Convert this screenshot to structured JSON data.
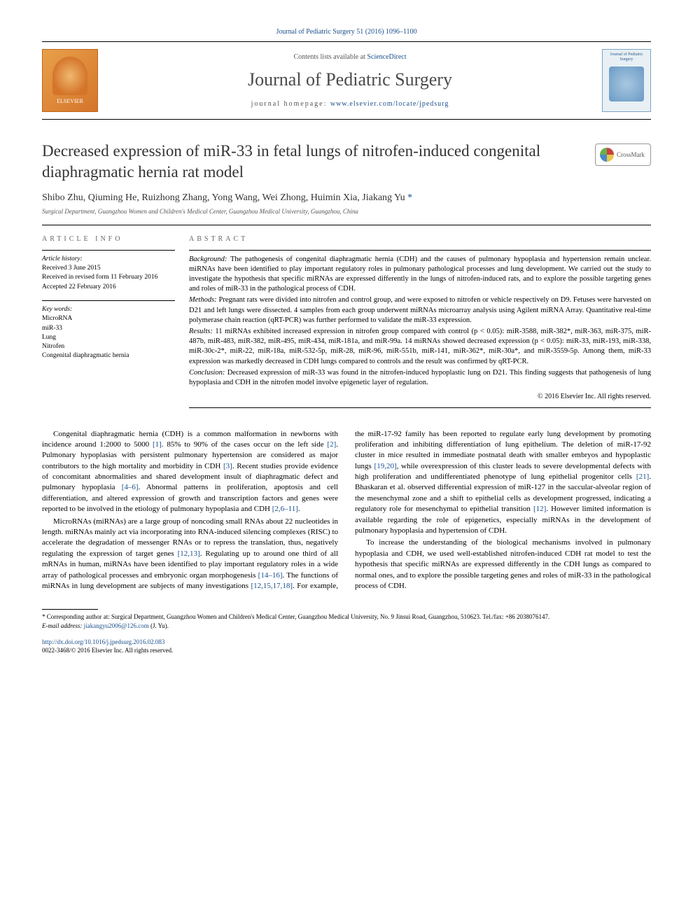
{
  "top_citation": {
    "prefix": "Journal of Pediatric Surgery",
    "rest": " 51 (2016) 1096–1100"
  },
  "header": {
    "contents_prefix": "Contents lists available at ",
    "contents_link": "ScienceDirect",
    "journal_name": "Journal of Pediatric Surgery",
    "homepage_prefix": "journal homepage: ",
    "homepage_url": "www.elsevier.com/locate/jpedsurg",
    "elsevier_text": "ELSEVIER",
    "cover_title": "Journal of Pediatric Surgery"
  },
  "article": {
    "title": "Decreased expression of miR-33 in fetal lungs of nitrofen-induced congenital diaphragmatic hernia rat model",
    "crossmark": "CrossMark",
    "authors": "Shibo Zhu, Qiuming He, Ruizhong Zhang, Yong Wang, Wei Zhong, Huimin Xia, Jiakang Yu ",
    "corresponding_mark": "*",
    "affiliation": "Surgical Department, Guangzhou Women and Children's Medical Center, Guangzhou Medical University, Guangzhou, China"
  },
  "article_info": {
    "label": "ARTICLE INFO",
    "history_label": "Article history:",
    "received": "Received 3 June 2015",
    "revised": "Received in revised form 11 February 2016",
    "accepted": "Accepted 22 February 2016",
    "keywords_label": "Key words:",
    "keywords": [
      "MicroRNA",
      "miR-33",
      "Lung",
      "Nitrofen",
      "Congenital diaphragmatic hernia"
    ]
  },
  "abstract": {
    "label": "ABSTRACT",
    "background_label": "Background:",
    "background": " The pathogenesis of congenital diaphragmatic hernia (CDH) and the causes of pulmonary hypoplasia and hypertension remain unclear. miRNAs have been identified to play important regulatory roles in pulmonary pathological processes and lung development. We carried out the study to investigate the hypothesis that specific miRNAs are expressed differently in the lungs of nitrofen-induced rats, and to explore the possible targeting genes and roles of miR-33 in the pathological process of CDH.",
    "methods_label": "Methods:",
    "methods": " Pregnant rats were divided into nitrofen and control group, and were exposed to nitrofen or vehicle respectively on D9. Fetuses were harvested on D21 and left lungs were dissected. 4 samples from each group underwent miRNAs microarray analysis using Agilent miRNA Array. Quantitative real-time polymerase chain reaction (qRT-PCR) was further performed to validate the miR-33 expression.",
    "results_label": "Results:",
    "results": " 11 miRNAs exhibited increased expression in nitrofen group compared with control (p < 0.05): miR-3588, miR-382*, miR-363, miR-375, miR-487b, miR-483, miR-382, miR-495, miR-434, miR-181a, and miR-99a. 14 miRNAs showed decreased expression (p < 0.05): miR-33, miR-193, miR-338, miR-30c-2*, miR-22, miR-18a, miR-532-5p, miR-28, miR-96, miR-551b, miR-141, miR-362*, miR-30a*, and miR-3559-5p. Among them, miR-33 expression was markedly decreased in CDH lungs compared to controls and the result was confirmed by qRT-PCR.",
    "conclusion_label": "Conclusion:",
    "conclusion": " Decreased expression of miR-33 was found in the nitrofen-induced hypoplastic lung on D21. This finding suggests that pathogenesis of lung hypoplasia and CDH in the nitrofen model involve epigenetic layer of regulation.",
    "copyright": "© 2016 Elsevier Inc. All rights reserved."
  },
  "body": {
    "p1a": "Congenital diaphragmatic hernia (CDH) is a common malformation in newborns with incidence around 1:2000 to 5000 ",
    "r1": "[1]",
    "p1b": ". 85% to 90% of the cases occur on the left side ",
    "r2": "[2]",
    "p1c": ". Pulmonary hypoplasias with persistent pulmonary hypertension are considered as major contributors to the high mortality and morbidity in CDH ",
    "r3": "[3]",
    "p1d": ". Recent studies provide evidence of concomitant abnormalities and shared development insult of diaphragmatic defect and pulmonary hypoplasia ",
    "r4": "[4–6]",
    "p1e": ". Abnormal patterns in proliferation, apoptosis and cell differentiation, and altered expression of growth and transcription factors and genes were reported to be involved in the etiology of pulmonary hypoplasia and CDH ",
    "r5": "[2,6–11]",
    "p1f": ".",
    "p2a": "MicroRNAs (miRNAs) are a large group of noncoding small RNAs about 22 nucleotides in length. miRNAs mainly act via incorporating into RNA-induced silencing complexes (RISC) to accelerate the degradation of messenger RNAs or to repress the translation, thus, negatively regulating the expression of target genes ",
    "r6": "[12,13]",
    "p2b": ". Regulating up to around one third of all mRNAs in human, miRNAs have been identified to play important regulatory roles in a wide array of pathological processes and embryonic organ morphogenesis ",
    "r7": "[14–16]",
    "p2c": ". The functions of miRNAs in lung development are subjects of many investigations ",
    "r8": "[12,15,17,18]",
    "p2d": ". For example, the miR-17-92 family has been reported to regulate early lung development by promoting proliferation and inhibiting differentiation of lung epithelium. The deletion of miR-17-92 cluster in mice resulted in immediate postnatal death with smaller embryos and hypoplastic lungs ",
    "r9": "[19,20]",
    "p2e": ", while overexpression of this cluster leads to severe developmental defects with high proliferation and undifferentiated phenotype of lung epithelial progenitor cells ",
    "r10": "[21]",
    "p2f": ". Bhaskaran et al. observed differential expression of miR-127 in the saccular-alveolar region of the mesenchymal zone and a shift to epithelial cells as development progressed, indicating a regulatory role for mesenchymal to epithelial transition ",
    "r11": "[12]",
    "p2g": ". However limited information is available regarding the role of epigenetics, especially miRNAs in the development of pulmonary hypoplasia and hypertension of CDH.",
    "p3": "To increase the understanding of the biological mechanisms involved in pulmonary hypoplasia and CDH, we used well-established nitrofen-induced CDH rat model to test the hypothesis that specific miRNAs are expressed differently in the CDH lungs as compared to normal ones, and to explore the possible targeting genes and roles of miR-33 in the pathological process of CDH."
  },
  "footer": {
    "corr_label": "* ",
    "corr_text": "Corresponding author at: Surgical Department, Guangzhou Women and Children's Medical Center, Guangzhou Medical University, No. 9 Jinsui Road, Guangzhou, 510623. Tel./fax: +86 2038076147.",
    "email_label": "E-mail address: ",
    "email": "jiakangyu2006@126.com",
    "email_suffix": " (J. Yu).",
    "doi": "http://dx.doi.org/10.1016/j.jpedsurg.2016.02.083",
    "issn": "0022-3468/© 2016 Elsevier Inc. All rights reserved."
  },
  "colors": {
    "link": "#1a4f8c",
    "text": "#000000",
    "muted": "#555555",
    "elsevier_bg": "#d4752a"
  }
}
